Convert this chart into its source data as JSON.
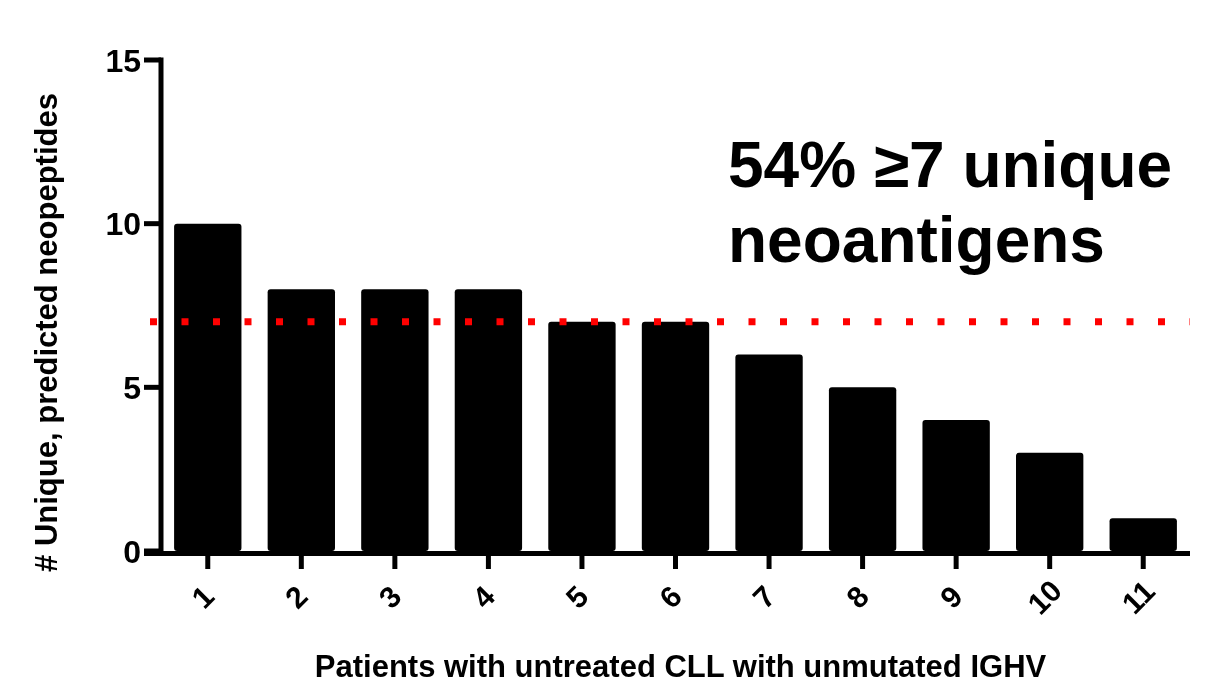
{
  "chart_data": {
    "type": "bar",
    "xlabel": "Patients with untreated CLL with unmutated IGHV",
    "ylabel": "# Unique, predicted neopeptides",
    "categories": [
      "1",
      "2",
      "3",
      "4",
      "5",
      "6",
      "7",
      "8",
      "9",
      "10",
      "11"
    ],
    "values": [
      10,
      8,
      8,
      8,
      7,
      7,
      6,
      5,
      4,
      3,
      1
    ],
    "color": "#000000",
    "ylim": [
      0,
      15
    ],
    "yticks": [
      0,
      5,
      10,
      15
    ],
    "ref_lines": [
      {
        "axis": "y",
        "value": 7,
        "color": "#ff0000",
        "line_style": "dotted"
      }
    ],
    "annotations": [
      "54% ≥7 unique\nneoantigens"
    ]
  }
}
